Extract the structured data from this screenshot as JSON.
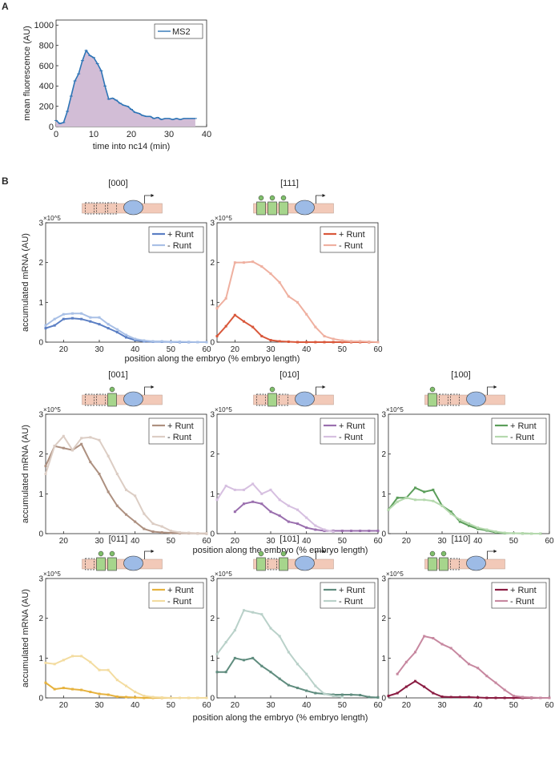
{
  "panel_labels": [
    "A",
    "B"
  ],
  "chart_data": [
    {
      "id": "A",
      "type": "area",
      "xlabel": "time into nc14 (min)",
      "ylabel": "mean fluorescence (AU)",
      "xlim": [
        0,
        40
      ],
      "ylim": [
        0,
        1050
      ],
      "xticks": [
        0,
        10,
        20,
        30,
        40
      ],
      "yticks": [
        0,
        200,
        400,
        600,
        800,
        1000
      ],
      "legend": "top-right",
      "series": [
        {
          "name": "MS2",
          "color": "#2e75b6",
          "fill": "#d2bdd6",
          "x": [
            0,
            1,
            2,
            3,
            4,
            5,
            6,
            7,
            8,
            9,
            10,
            11,
            12,
            13,
            14,
            15,
            16,
            17,
            18,
            19,
            20,
            21,
            22,
            23,
            24,
            25,
            26,
            27,
            28,
            29,
            30,
            31,
            32,
            33,
            34,
            35,
            36,
            37
          ],
          "y": [
            60,
            30,
            40,
            150,
            300,
            450,
            520,
            650,
            750,
            700,
            680,
            620,
            550,
            400,
            270,
            280,
            260,
            230,
            210,
            200,
            170,
            140,
            130,
            110,
            100,
            100,
            80,
            90,
            70,
            80,
            80,
            70,
            80,
            70,
            80,
            80,
            80,
            80
          ]
        }
      ]
    },
    {
      "id": "000",
      "title": "[000]",
      "type": "line",
      "row": 0,
      "col": 0,
      "ylabel": "accumulated mRNA (AU)",
      "xlabel": "position along the embryo (% embryo length)",
      "xlim": [
        15,
        60
      ],
      "ylim": [
        0,
        3
      ],
      "y_exponent": "×10^5",
      "xticks": [
        20,
        30,
        40,
        50,
        60
      ],
      "yticks": [
        0,
        1,
        2,
        3
      ],
      "legend": "top-right",
      "series": [
        {
          "name": "+ Runt",
          "color": "#5b7fc4",
          "x": [
            15,
            17.5,
            20,
            22.5,
            25,
            27.5,
            30,
            32.5,
            35,
            37.5,
            40,
            42.5,
            45,
            47.5,
            50,
            52.5,
            55,
            57.5,
            60
          ],
          "y": [
            0.35,
            0.42,
            0.58,
            0.6,
            0.58,
            0.52,
            0.45,
            0.35,
            0.25,
            0.12,
            0.05,
            0.02,
            0.01,
            0.01,
            0.005,
            0,
            0,
            0,
            0
          ]
        },
        {
          "name": "- Runt",
          "color": "#a9c0e6",
          "x": [
            15,
            17.5,
            20,
            22.5,
            25,
            27.5,
            30,
            32.5,
            35,
            37.5,
            40,
            42.5,
            45,
            47.5,
            50,
            52.5,
            55,
            57.5,
            60
          ],
          "y": [
            0.42,
            0.58,
            0.7,
            0.72,
            0.72,
            0.62,
            0.62,
            0.45,
            0.32,
            0.18,
            0.08,
            0.04,
            0.02,
            0.02,
            0.01,
            0.01,
            0.005,
            0,
            0
          ]
        }
      ]
    },
    {
      "id": "111",
      "title": "[111]",
      "type": "line",
      "row": 0,
      "col": 1,
      "xlim": [
        15,
        60
      ],
      "ylim": [
        0,
        3
      ],
      "y_exponent": "×10^5",
      "xticks": [
        20,
        30,
        40,
        50,
        60
      ],
      "yticks": [
        0,
        1,
        2,
        3
      ],
      "legend": "top-right",
      "series": [
        {
          "name": "+ Runt",
          "color": "#d9583b",
          "x": [
            15,
            17.5,
            20,
            22.5,
            25,
            27.5,
            30,
            32.5,
            35,
            37.5,
            40,
            42.5,
            45,
            47.5,
            50,
            52.5,
            55,
            57.5,
            60
          ],
          "y": [
            0.15,
            0.4,
            0.68,
            0.52,
            0.38,
            0.15,
            0.05,
            0.02,
            0.01,
            0,
            0,
            0,
            0,
            0,
            0,
            0,
            0,
            0,
            0
          ]
        },
        {
          "name": "- Runt",
          "color": "#efb0a0",
          "x": [
            15,
            17.5,
            20,
            22.5,
            25,
            27.5,
            30,
            32.5,
            35,
            37.5,
            40,
            42.5,
            45,
            47.5,
            50,
            52.5,
            55,
            57.5,
            60
          ],
          "y": [
            0.85,
            1.1,
            2.0,
            2.0,
            2.02,
            1.9,
            1.72,
            1.5,
            1.15,
            1.0,
            0.7,
            0.38,
            0.15,
            0.08,
            0.04,
            0.02,
            0.02,
            0.01,
            0
          ]
        }
      ]
    },
    {
      "id": "001",
      "title": "[001]",
      "type": "line",
      "row": 1,
      "col": 0,
      "ylabel": "accumulated mRNA (AU)",
      "xlabel": "position along the embryo (% embryo length)",
      "xlim": [
        15,
        60
      ],
      "ylim": [
        0,
        3
      ],
      "y_exponent": "×10^5",
      "xticks": [
        20,
        30,
        40,
        50,
        60
      ],
      "yticks": [
        0,
        1,
        2,
        3
      ],
      "legend": "top-right",
      "series": [
        {
          "name": "+ Runt",
          "color": "#ad9080",
          "x": [
            15,
            17.5,
            20,
            22.5,
            25,
            27.5,
            30,
            32.5,
            35,
            37.5,
            40,
            42.5,
            45,
            47.5,
            50,
            52.5,
            55,
            57.5,
            60
          ],
          "y": [
            1.7,
            2.2,
            2.15,
            2.1,
            2.25,
            1.8,
            1.5,
            1.05,
            0.7,
            0.48,
            0.3,
            0.12,
            0.05,
            0.03,
            0.02,
            0.01,
            0.01,
            0.005,
            0
          ]
        },
        {
          "name": "- Runt",
          "color": "#dccdc4",
          "x": [
            15,
            17.5,
            20,
            22.5,
            25,
            27.5,
            30,
            32.5,
            35,
            37.5,
            40,
            42.5,
            45,
            47.5,
            50,
            52.5,
            55,
            57.5,
            60
          ],
          "y": [
            1.5,
            2.2,
            2.45,
            2.1,
            2.4,
            2.42,
            2.35,
            1.95,
            1.5,
            1.1,
            0.95,
            0.5,
            0.25,
            0.18,
            0.07,
            0.03,
            0.02,
            0.01,
            0.01
          ]
        }
      ]
    },
    {
      "id": "010",
      "title": "[010]",
      "type": "line",
      "row": 1,
      "col": 1,
      "xlim": [
        15,
        60
      ],
      "ylim": [
        0,
        3
      ],
      "y_exponent": "×10^5",
      "xticks": [
        20,
        30,
        40,
        50,
        60
      ],
      "yticks": [
        0,
        1,
        2,
        3
      ],
      "legend": "top-right",
      "series": [
        {
          "name": "+ Runt",
          "color": "#9a6fae",
          "x": [
            20,
            22.5,
            25,
            27.5,
            30,
            32.5,
            35,
            37.5,
            40,
            42.5,
            45,
            47.5,
            50,
            52.5,
            55,
            57.5,
            60
          ],
          "y": [
            0.55,
            0.75,
            0.8,
            0.75,
            0.55,
            0.45,
            0.3,
            0.25,
            0.15,
            0.1,
            0.07,
            0.07,
            0.07,
            0.07,
            0.07,
            0.07,
            0.07
          ]
        },
        {
          "name": "- Runt",
          "color": "#d6bfe0",
          "x": [
            15,
            17.5,
            20,
            22.5,
            25,
            27.5,
            30,
            32.5,
            35,
            37.5,
            40,
            42.5,
            45,
            47.5
          ],
          "y": [
            0.85,
            1.2,
            1.1,
            1.1,
            1.25,
            1.0,
            1.1,
            0.85,
            0.7,
            0.6,
            0.4,
            0.2,
            0.1,
            0.05
          ]
        }
      ]
    },
    {
      "id": "100",
      "title": "[100]",
      "type": "line",
      "row": 1,
      "col": 2,
      "xlim": [
        15,
        60
      ],
      "ylim": [
        0,
        3
      ],
      "y_exponent": "×10^5",
      "xticks": [
        20,
        30,
        40,
        50,
        60
      ],
      "yticks": [
        0,
        1,
        2,
        3
      ],
      "legend": "top-right",
      "series": [
        {
          "name": "+ Runt",
          "color": "#5b9e5a",
          "x": [
            15,
            17.5,
            20,
            22.5,
            25,
            27.5,
            30,
            32.5,
            35,
            37.5,
            40,
            42.5,
            45,
            47.5,
            50,
            52.5,
            55,
            57.5
          ],
          "y": [
            0.6,
            0.9,
            0.9,
            1.15,
            1.05,
            1.1,
            0.7,
            0.55,
            0.3,
            0.2,
            0.12,
            0.08,
            0.03,
            0.01,
            0.01,
            0.005,
            0,
            0
          ]
        },
        {
          "name": "- Runt",
          "color": "#b5d9ae",
          "x": [
            15,
            17.5,
            20,
            22.5,
            25,
            27.5,
            30,
            32.5,
            35,
            37.5,
            40,
            42.5,
            45,
            47.5,
            50,
            52.5,
            55,
            57.5
          ],
          "y": [
            0.6,
            0.8,
            0.9,
            0.85,
            0.85,
            0.82,
            0.7,
            0.5,
            0.35,
            0.25,
            0.15,
            0.1,
            0.05,
            0.02,
            0.01,
            0.01,
            0,
            0
          ]
        }
      ]
    },
    {
      "id": "011",
      "title": "[011]",
      "type": "line",
      "row": 2,
      "col": 0,
      "ylabel": "accumulated mRNA (AU)",
      "xlim": [
        15,
        60
      ],
      "ylim": [
        0,
        3
      ],
      "y_exponent": "×10^5",
      "xticks": [
        20,
        30,
        40,
        50,
        60
      ],
      "yticks": [
        0,
        1,
        2,
        3
      ],
      "legend": "top-right",
      "series": [
        {
          "name": "+ Runt",
          "color": "#e6b23e",
          "x": [
            15,
            17.5,
            20,
            22.5,
            25,
            27.5,
            30,
            32.5,
            35,
            37.5,
            40,
            42.5,
            45,
            47.5,
            50,
            52.5,
            55,
            57.5,
            60
          ],
          "y": [
            0.38,
            0.22,
            0.25,
            0.22,
            0.2,
            0.15,
            0.1,
            0.08,
            0.03,
            0.02,
            0.01,
            0,
            0,
            0,
            0,
            0,
            0,
            0,
            0
          ]
        },
        {
          "name": "- Runt",
          "color": "#f3dca0",
          "x": [
            15,
            17.5,
            20,
            22.5,
            25,
            27.5,
            30,
            32.5,
            35,
            37.5,
            40,
            42.5,
            45,
            47.5,
            50,
            52.5,
            55,
            57.5,
            60
          ],
          "y": [
            0.88,
            0.85,
            0.95,
            1.05,
            1.05,
            0.9,
            0.7,
            0.7,
            0.45,
            0.3,
            0.15,
            0.05,
            0.02,
            0.01,
            0,
            0,
            0,
            0,
            0
          ]
        }
      ]
    },
    {
      "id": "101",
      "title": "[101]",
      "type": "line",
      "row": 2,
      "col": 1,
      "xlabel": "position along the embryo (% embryo length)",
      "xlim": [
        15,
        60
      ],
      "ylim": [
        0,
        3
      ],
      "y_exponent": "×10^5",
      "xticks": [
        20,
        30,
        40,
        50,
        60
      ],
      "yticks": [
        0,
        1,
        2,
        3
      ],
      "legend": "top-right",
      "series": [
        {
          "name": "+ Runt",
          "color": "#5f8c7e",
          "x": [
            15,
            17.5,
            20,
            22.5,
            25,
            27.5,
            30,
            32.5,
            35,
            37.5,
            40,
            42.5,
            45,
            47.5,
            50,
            52.5,
            55,
            57.5,
            60
          ],
          "y": [
            0.65,
            0.65,
            1.0,
            0.95,
            1.0,
            0.8,
            0.65,
            0.48,
            0.32,
            0.25,
            0.18,
            0.12,
            0.1,
            0.08,
            0.08,
            0.08,
            0.07,
            0.02,
            0.01
          ]
        },
        {
          "name": "- Runt",
          "color": "#b9d1c9",
          "x": [
            15,
            17.5,
            20,
            22.5,
            25,
            27.5,
            30,
            32.5,
            35,
            37.5,
            40,
            42.5,
            45,
            47.5,
            50
          ],
          "y": [
            1.1,
            1.4,
            1.7,
            2.2,
            2.15,
            2.1,
            1.75,
            1.55,
            1.15,
            0.85,
            0.6,
            0.3,
            0.1,
            0.05,
            0.02
          ]
        }
      ]
    },
    {
      "id": "110",
      "title": "[110]",
      "type": "line",
      "row": 2,
      "col": 2,
      "xlim": [
        15,
        60
      ],
      "ylim": [
        0,
        3
      ],
      "y_exponent": "×10^5",
      "xticks": [
        20,
        30,
        40,
        50,
        60
      ],
      "yticks": [
        0,
        1,
        2,
        3
      ],
      "legend": "top-right",
      "series": [
        {
          "name": "+ Runt",
          "color": "#8a1c42",
          "x": [
            15,
            17.5,
            20,
            22.5,
            25,
            27.5,
            30,
            32.5,
            35,
            37.5,
            40,
            42.5,
            45,
            47.5,
            50,
            52.5,
            55,
            57.5,
            60
          ],
          "y": [
            0.05,
            0.12,
            0.28,
            0.42,
            0.28,
            0.12,
            0.03,
            0.02,
            0.02,
            0.02,
            0.01,
            0,
            0,
            0,
            0,
            0,
            0,
            0,
            0
          ]
        },
        {
          "name": "- Runt",
          "color": "#c788a0",
          "x": [
            17.5,
            20,
            22.5,
            25,
            27.5,
            30,
            32.5,
            35,
            37.5,
            40,
            42.5,
            45,
            47.5,
            50,
            52.5,
            55,
            57.5,
            60
          ],
          "y": [
            0.6,
            0.9,
            1.15,
            1.55,
            1.5,
            1.35,
            1.25,
            1.05,
            0.85,
            0.75,
            0.55,
            0.38,
            0.2,
            0.05,
            0.02,
            0.01,
            0,
            0
          ]
        }
      ]
    }
  ]
}
